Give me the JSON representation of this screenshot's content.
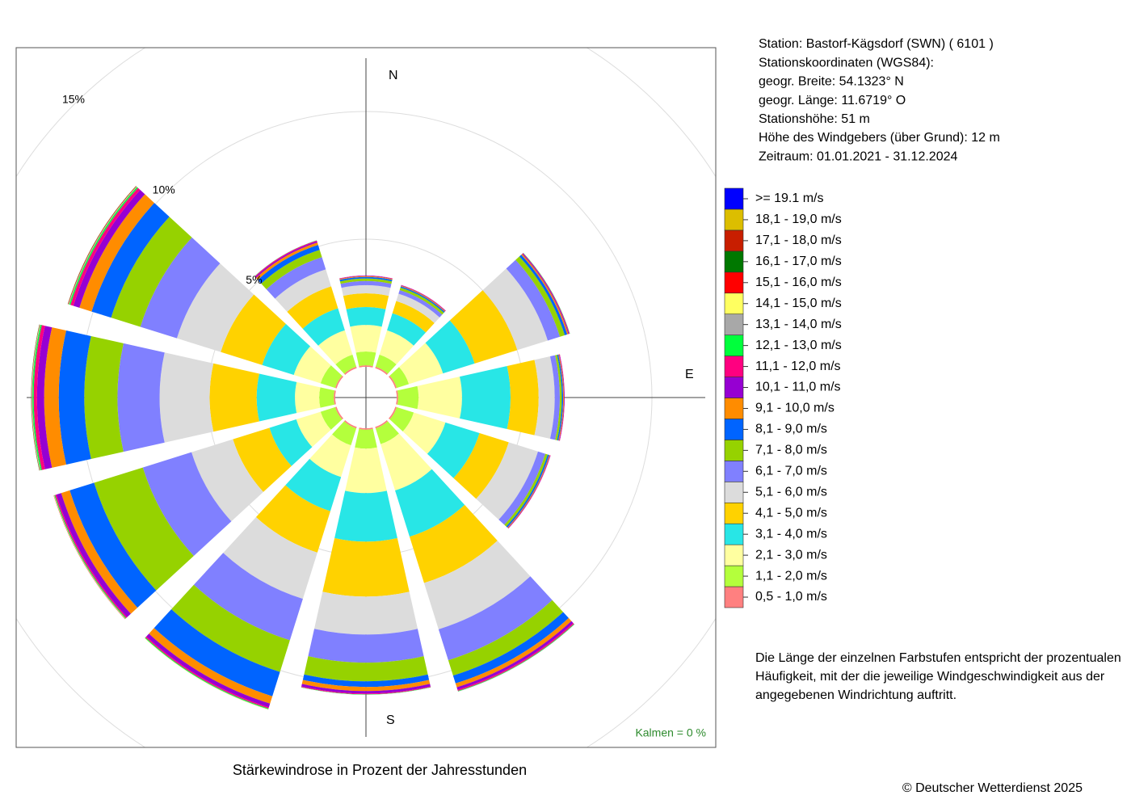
{
  "chart_data": {
    "type": "windrose",
    "title": "Stärkewindrose in Prozent der Jahresstunden",
    "station_info": [
      "Station:  Bastorf-Kägsdorf (SWN)  ( 6101 )",
      "Stationskoordinaten (WGS84):",
      "geogr. Breite: 54.1323° N",
      "geogr. Länge: 11.6719° O",
      "Stationshöhe: 51 m",
      "Höhe des Windgebers (über Grund): 12 m",
      "Zeitraum: 01.01.2021 - 31.12.2024"
    ],
    "description": [
      "Die Länge der einzelnen Farbstufen entspricht der prozentualen",
      "Häufigkeit, mit der die jeweilige Windgeschwindigkeit aus der",
      "angegebenen Windrichtung auftritt."
    ],
    "calms": "Kalmen  =  0 %",
    "copyright": "© Deutscher Wetterdienst  2025",
    "direction_labels": {
      "N": "N",
      "E": "E",
      "S": "S"
    },
    "categories": [
      null,
      null,
      null,
      null,
      null,
      null,
      null,
      null,
      null,
      null,
      null,
      null
    ],
    "rlim": [
      0,
      15
    ],
    "rticks": [
      {
        "value": 5,
        "label": "5%"
      },
      {
        "value": 10,
        "label": "10%"
      },
      {
        "value": 15,
        "label": "15%"
      }
    ],
    "grid": true,
    "series": [
      {
        "name": "0,5 - 1,0 m/s",
        "color": "#ff8080",
        "values": [
          0.06,
          0.06,
          0.06,
          0.06,
          0.06,
          0.06,
          0.06,
          0.06,
          0.06,
          0.06,
          0.06,
          0.06
        ]
      },
      {
        "name": "1,1 - 2,0 m/s",
        "color": "#b4ff3c",
        "values": [
          0.54,
          0.5,
          0.5,
          0.8,
          0.7,
          0.65,
          0.74,
          0.7,
          0.6,
          0.57,
          0.6,
          0.5
        ]
      },
      {
        "name": "2,1 - 3,0 m/s",
        "color": "#ffffa0",
        "values": [
          1.04,
          1.0,
          1.4,
          1.7,
          1.3,
          1.9,
          1.74,
          1.3,
          1.0,
          0.95,
          1.1,
          1.0
        ]
      },
      {
        "name": "3,1 - 4,0 m/s",
        "color": "#28e6e6",
        "values": [
          0.7,
          0.7,
          1.3,
          1.9,
          1.4,
          1.9,
          1.9,
          1.4,
          1.1,
          1.5,
          1.3,
          0.9
        ]
      },
      {
        "name": "4,1 - 5,0 m/s",
        "color": "#ffd200",
        "values": [
          0.54,
          0.5,
          1.75,
          1.1,
          1.2,
          1.9,
          2.15,
          1.7,
          1.5,
          1.84,
          1.7,
          0.9
        ]
      },
      {
        "name": "5,1 - 6,0 m/s",
        "color": "#dcdcdc",
        "values": [
          0.32,
          0.3,
          1.25,
          0.63,
          1.2,
          1.9,
          1.49,
          1.9,
          1.7,
          1.96,
          1.8,
          0.7
        ]
      },
      {
        "name": "6,1 - 7,0 m/s",
        "color": "#8080ff",
        "values": [
          0.16,
          0.15,
          0.5,
          0.2,
          0.3,
          1.27,
          1.1,
          1.7,
          2.0,
          1.65,
          1.5,
          0.5
        ]
      },
      {
        "name": "7,1 - 8,0 m/s",
        "color": "#96d200",
        "values": [
          0.1,
          0.1,
          0.2,
          0.08,
          0.1,
          0.63,
          0.73,
          1.3,
          2.0,
          1.3,
          1.2,
          0.3
        ]
      },
      {
        "name": "8,1 - 9,0 m/s",
        "color": "#0064ff",
        "values": [
          0.06,
          0.05,
          0.1,
          0.05,
          0.06,
          0.32,
          0.22,
          1.0,
          1.0,
          1.0,
          0.8,
          0.2
        ]
      },
      {
        "name": "9,1 - 10,0 m/s",
        "color": "#ff8c00",
        "values": [
          0.03,
          0.03,
          0.05,
          0.03,
          0.03,
          0.16,
          0.16,
          0.3,
          0.35,
          0.57,
          0.5,
          0.1
        ]
      },
      {
        "name": "10,1 - 11,0 m/s",
        "color": "#9600d2",
        "values": [
          0.02,
          0.02,
          0.03,
          0.02,
          0.02,
          0.1,
          0.1,
          0.15,
          0.2,
          0.28,
          0.25,
          0.05
        ]
      },
      {
        "name": "11,1 - 12,0 m/s",
        "color": "#ff0080",
        "values": [
          0.01,
          0.01,
          0.02,
          0.01,
          0.01,
          0.05,
          0.03,
          0.05,
          0.05,
          0.13,
          0.12,
          0.03
        ]
      },
      {
        "name": "12,1 - 13,0 m/s",
        "color": "#00ff3c",
        "values": [
          0,
          0,
          0.01,
          0,
          0,
          0.02,
          0.01,
          0.03,
          0.03,
          0.05,
          0.05,
          0.01
        ]
      },
      {
        "name": "13,1 - 14,0 m/s",
        "color": "#a8a8a8",
        "values": [
          0,
          0,
          0,
          0,
          0,
          0.01,
          0,
          0.01,
          0.01,
          0.02,
          0.02,
          0
        ]
      },
      {
        "name": "14,1 - 15,0 m/s",
        "color": "#ffff60",
        "values": [
          0,
          0,
          0,
          0,
          0,
          0,
          0,
          0.01,
          0.01,
          0.01,
          0.01,
          0
        ]
      },
      {
        "name": "15,1 - 16,0 m/s",
        "color": "#ff0000",
        "values": [
          0,
          0,
          0,
          0,
          0,
          0,
          0,
          0,
          0.01,
          0.01,
          0.01,
          0
        ]
      },
      {
        "name": "16,1 - 17,0 m/s",
        "color": "#007800",
        "values": [
          0,
          0,
          0,
          0,
          0,
          0,
          0,
          0,
          0,
          0.01,
          0.01,
          0
        ]
      },
      {
        "name": "17,1 - 18,0 m/s",
        "color": "#c81e00",
        "values": [
          0,
          0,
          0,
          0,
          0,
          0,
          0,
          0,
          0,
          0,
          0.01,
          0
        ]
      },
      {
        "name": "18,1 - 19,0 m/s",
        "color": "#dcbe00",
        "values": [
          0,
          0,
          0,
          0,
          0,
          0,
          0,
          0,
          0,
          0,
          0,
          0
        ]
      },
      {
        "name": ">= 19.1 m/s",
        "color": "#0000ff",
        "values": [
          0,
          0,
          0,
          0,
          0,
          0,
          0,
          0,
          0,
          0,
          0,
          0
        ]
      }
    ]
  }
}
